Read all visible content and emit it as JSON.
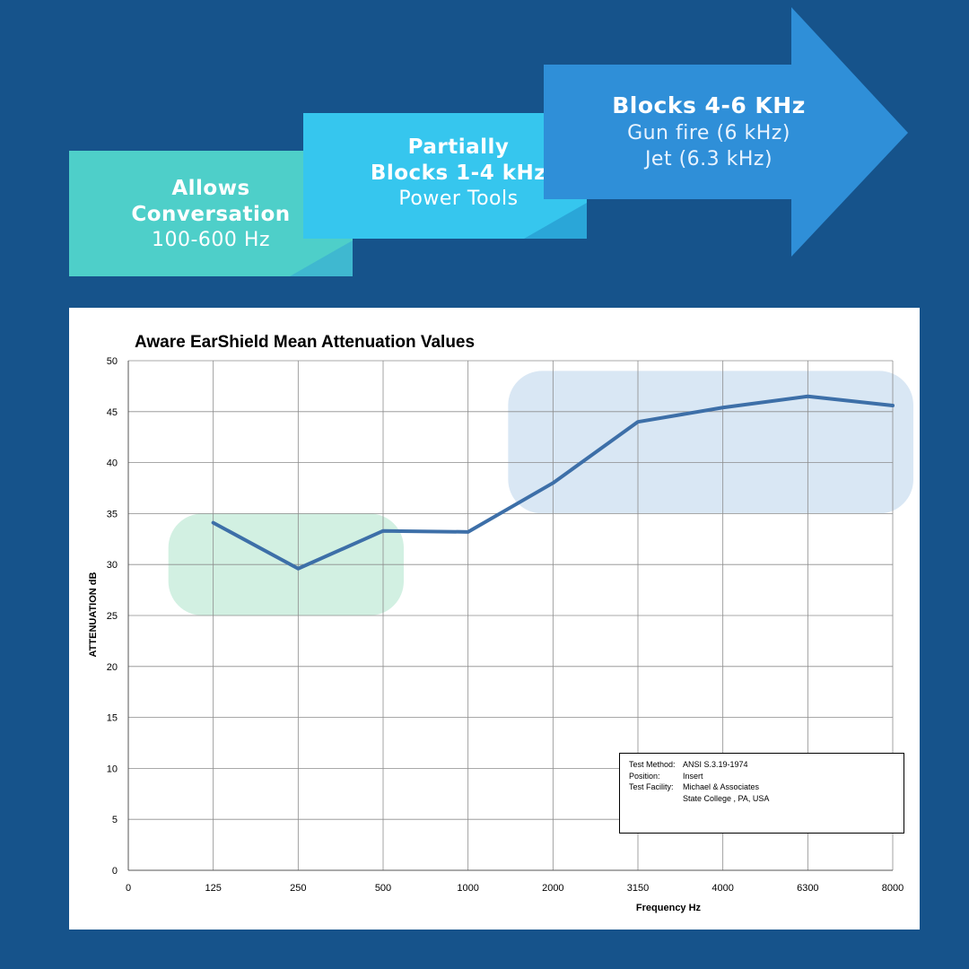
{
  "banners": [
    {
      "title_line1": "Allows",
      "title_line2": "Conversation",
      "sub": "100-600 Hz"
    },
    {
      "title_line1": "Partially",
      "title_line2": "Blocks 1-4 kHz",
      "sub": "Power Tools"
    },
    {
      "title_line1": "Blocks 4-6 KHz",
      "sub_line1": "Gun fire (6 kHz)",
      "sub_line2": "Jet (6.3 kHz)"
    }
  ],
  "colors": {
    "background": "#16538b",
    "banner1": "#4ecfc9",
    "banner2": "#36c6ee",
    "banner3": "#2f8fd8",
    "line": "#3d6fa8",
    "green_region": "#d2f0e2",
    "blue_region": "#d9e7f4"
  },
  "chart_data": {
    "type": "line",
    "title": "Aware EarShield Mean Attenuation Values",
    "xlabel": "Frequency Hz",
    "ylabel": "ATTENUATION dB",
    "categories": [
      "0",
      "125",
      "250",
      "500",
      "1000",
      "2000",
      "3150",
      "4000",
      "6300",
      "8000"
    ],
    "ylim": [
      0,
      50
    ],
    "yticks": [
      0,
      5,
      10,
      15,
      20,
      25,
      30,
      35,
      40,
      45,
      50
    ],
    "grid": true,
    "series": [
      {
        "x": [
          "125",
          "250",
          "500",
          "1000",
          "2000",
          "3150",
          "4000",
          "6300",
          "8000"
        ],
        "values": [
          34.1,
          29.6,
          33.3,
          33.2,
          38.0,
          44.0,
          45.4,
          46.5,
          45.6
        ]
      }
    ],
    "highlights": [
      {
        "from": "125",
        "to": "500",
        "ymin": 25,
        "ymax": 35,
        "color": "#d2f0e2"
      },
      {
        "from": "2000",
        "to": "8000",
        "ymin": 35,
        "ymax": 49,
        "color": "#d9e7f4"
      }
    ]
  },
  "infobox": {
    "rows": [
      {
        "key": "Test Method:",
        "value": "ANSI S.3.19-1974"
      },
      {
        "key": "Position:",
        "value": "Insert"
      },
      {
        "key": "Test Facility:",
        "value": "Michael & Associates"
      },
      {
        "key": "",
        "value": "State College , PA, USA"
      }
    ]
  }
}
